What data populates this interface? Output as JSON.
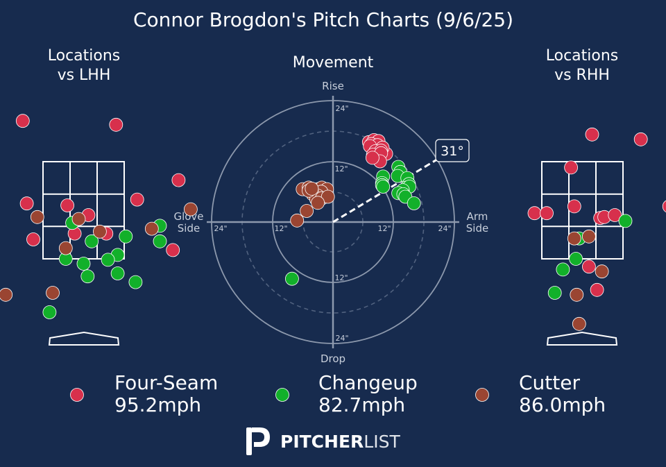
{
  "title": "Connor Brogdon's Pitch Charts (9/6/25)",
  "left_panel": {
    "title_line1": "Locations",
    "title_line2": "vs LHH"
  },
  "center_panel": {
    "title": "Movement"
  },
  "right_panel": {
    "title_line1": "Locations",
    "title_line2": "vs RHH"
  },
  "movement_labels": {
    "top": "Rise",
    "bottom": "Drop",
    "left_line1": "Glove",
    "left_line2": "Side",
    "right_line1": "Arm",
    "right_line2": "Side",
    "ring_24": "24\"",
    "ring_12": "12\""
  },
  "arm_angle_label": "31°",
  "legend": [
    {
      "name": "Four-Seam",
      "velo": "95.2mph",
      "color": "#d7304c"
    },
    {
      "name": "Changeup",
      "velo": "82.7mph",
      "color": "#12b02a"
    },
    {
      "name": "Cutter",
      "velo": "86.0mph",
      "color": "#9a4532"
    }
  ],
  "brand": {
    "bold": "PITCHER",
    "light": "LIST"
  },
  "chart_data": [
    {
      "type": "scatter",
      "title": "Movement",
      "xlabel_left": "Glove Side",
      "xlabel_right": "Arm Side",
      "ylabel_top": "Rise",
      "ylabel_bottom": "Drop",
      "units": "inches",
      "xlim": [
        -24,
        24
      ],
      "ylim": [
        -24,
        24
      ],
      "arm_angle_deg": 31,
      "series": [
        {
          "name": "Four-Seam",
          "color": "#d7304c",
          "points": [
            [
              7.1,
              15.8
            ],
            [
              8.1,
              16.2
            ],
            [
              9.0,
              16.0
            ],
            [
              7.6,
              15.4
            ],
            [
              8.8,
              15.2
            ],
            [
              7.3,
              15.0
            ],
            [
              10.5,
              13.5
            ],
            [
              9.8,
              14.7
            ],
            [
              8.4,
              14.0
            ],
            [
              9.5,
              14.1
            ],
            [
              7.9,
              13.3
            ],
            [
              9.5,
              13.6
            ],
            [
              9.3,
              12.0
            ],
            [
              7.8,
              12.7
            ]
          ]
        },
        {
          "name": "Changeup",
          "color": "#12b02a",
          "points": [
            [
              12.9,
              10.9
            ],
            [
              13.3,
              9.9
            ],
            [
              12.8,
              9.1
            ],
            [
              14.7,
              8.7
            ],
            [
              15.0,
              7.5
            ],
            [
              14.5,
              6.8
            ],
            [
              15.1,
              7.0
            ],
            [
              13.8,
              6.3
            ],
            [
              12.9,
              5.7
            ],
            [
              13.9,
              5.5
            ],
            [
              14.3,
              5.0
            ],
            [
              16.0,
              3.7
            ],
            [
              9.9,
              9.0
            ],
            [
              9.7,
              7.7
            ],
            [
              9.7,
              7.3
            ],
            [
              9.9,
              7.0
            ],
            [
              -8.1,
              -11.2
            ]
          ]
        },
        {
          "name": "Cutter",
          "color": "#9a4532",
          "points": [
            [
              -6.0,
              6.5
            ],
            [
              -4.8,
              6.8
            ],
            [
              -3.0,
              6.5
            ],
            [
              -2.2,
              6.8
            ],
            [
              -1.2,
              6.5
            ],
            [
              -2.3,
              6.0
            ],
            [
              -3.0,
              5.2
            ],
            [
              -4.0,
              5.5
            ],
            [
              -3.3,
              4.5
            ],
            [
              -2.2,
              4.7
            ],
            [
              -1.0,
              5.0
            ],
            [
              -3.0,
              3.8
            ],
            [
              -5.2,
              2.2
            ],
            [
              -7.1,
              0.3
            ],
            [
              -4.8,
              6.2
            ],
            [
              -4.2,
              6.6
            ]
          ]
        }
      ]
    },
    {
      "type": "scatter",
      "title": "Locations vs LHH",
      "units": "strike-zone widths from center (x) and zone heights from zone bottom (y); zone spans x -0.5..0.5, y 0..1",
      "series": [
        {
          "name": "Four-Seam",
          "color": "#d7304c",
          "points": [
            [
              -0.75,
              1.42
            ],
            [
              0.4,
              1.38
            ],
            [
              1.17,
              0.81
            ],
            [
              -0.7,
              0.57
            ],
            [
              -0.2,
              0.55
            ],
            [
              0.66,
              0.61
            ],
            [
              0.06,
              0.45
            ],
            [
              -0.11,
              0.26
            ],
            [
              0.28,
              0.26
            ],
            [
              -0.62,
              0.2
            ],
            [
              -1.27,
              0.07
            ],
            [
              1.1,
              0.09
            ]
          ]
        },
        {
          "name": "Changeup",
          "color": "#12b02a",
          "points": [
            [
              -0.14,
              0.37
            ],
            [
              0.94,
              0.34
            ],
            [
              0.52,
              0.23
            ],
            [
              0.1,
              0.18
            ],
            [
              0.94,
              0.18
            ],
            [
              0.42,
              0.04
            ],
            [
              -0.22,
              0.0
            ],
            [
              0.3,
              -0.01
            ],
            [
              0.0,
              -0.05
            ],
            [
              0.05,
              -0.18
            ],
            [
              0.42,
              -0.15
            ],
            [
              0.64,
              -0.24
            ],
            [
              -0.42,
              -0.55
            ]
          ]
        },
        {
          "name": "Cutter",
          "color": "#9a4532",
          "points": [
            [
              -0.57,
              0.43
            ],
            [
              -0.06,
              0.41
            ],
            [
              1.32,
              0.51
            ],
            [
              0.2,
              0.28
            ],
            [
              0.84,
              0.31
            ],
            [
              -0.22,
              0.11
            ],
            [
              -0.38,
              -0.35
            ],
            [
              -0.96,
              -0.37
            ]
          ]
        }
      ]
    },
    {
      "type": "scatter",
      "title": "Locations vs RHH",
      "units": "strike-zone widths from center (x) and zone heights from zone bottom (y); zone spans x -0.5..0.5, y 0..1",
      "series": [
        {
          "name": "Four-Seam",
          "color": "#d7304c",
          "points": [
            [
              0.12,
              1.28
            ],
            [
              0.72,
              1.23
            ],
            [
              -0.14,
              0.94
            ],
            [
              1.07,
              0.54
            ],
            [
              -0.1,
              0.54
            ],
            [
              -0.59,
              0.47
            ],
            [
              -0.44,
              0.47
            ],
            [
              0.22,
              0.42
            ],
            [
              0.27,
              0.43
            ],
            [
              0.4,
              0.45
            ],
            [
              0.08,
              -0.08
            ],
            [
              0.18,
              -0.32
            ]
          ]
        },
        {
          "name": "Changeup",
          "color": "#12b02a",
          "points": [
            [
              0.53,
              0.39
            ],
            [
              -0.04,
              0.21
            ],
            [
              -0.08,
              0.0
            ],
            [
              -0.24,
              -0.11
            ],
            [
              -0.34,
              -0.35
            ]
          ]
        },
        {
          "name": "Cutter",
          "color": "#9a4532",
          "points": [
            [
              -0.1,
              0.21
            ],
            [
              0.08,
              0.23
            ],
            [
              0.24,
              -0.13
            ],
            [
              -0.07,
              -0.37
            ],
            [
              -0.04,
              -0.67
            ]
          ]
        }
      ]
    }
  ]
}
